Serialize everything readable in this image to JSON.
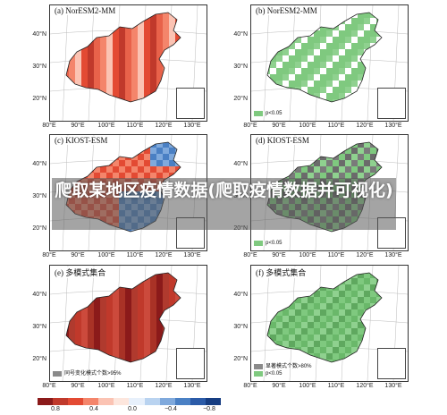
{
  "title": "爬取某地区疫情数据(爬取疫情数据并可视化)",
  "panels": [
    {
      "label": "(a) NorESM2-MM",
      "kind": "red",
      "legend": []
    },
    {
      "label": "(b) NorESM2-MM",
      "kind": "green",
      "legend": [
        {
          "text": "p<0.05",
          "color": "#7fc97f"
        }
      ]
    },
    {
      "label": "(c) KIOST-ESM",
      "kind": "mixed",
      "legend": []
    },
    {
      "label": "(d) KIOST-ESM",
      "kind": "greengray",
      "legend": [
        {
          "text": "p<0.05",
          "color": "#7fc97f"
        }
      ]
    },
    {
      "label": "(e) 多模式集合",
      "kind": "darkred",
      "legend": [
        {
          "text": "同号变化模式个数>95%",
          "color": "#8a8a8a"
        }
      ]
    },
    {
      "label": "(f) 多模式集合",
      "kind": "greenfull",
      "legend": [
        {
          "text": "显著模式个数>80%",
          "color": "#8a8a8a"
        },
        {
          "text": "p<0.05",
          "color": "#7fc97f"
        }
      ]
    }
  ],
  "lat_labels": [
    "40°N",
    "30°N",
    "20°N"
  ],
  "lon_labels": [
    "80°E",
    "90°E",
    "100°E",
    "110°E",
    "120°E",
    "130°E"
  ],
  "colorbar": {
    "colors": [
      "#8b1a1a",
      "#c0392b",
      "#e34a33",
      "#f4856b",
      "#fbc3b3",
      "#fde6dd",
      "#e7f0fb",
      "#b9d3f0",
      "#7fa9dc",
      "#4a80c4",
      "#2b5ba8",
      "#163d82"
    ],
    "ticks": [
      "0.8",
      "0.4",
      "0.0",
      "−0.4",
      "−0.8"
    ]
  }
}
